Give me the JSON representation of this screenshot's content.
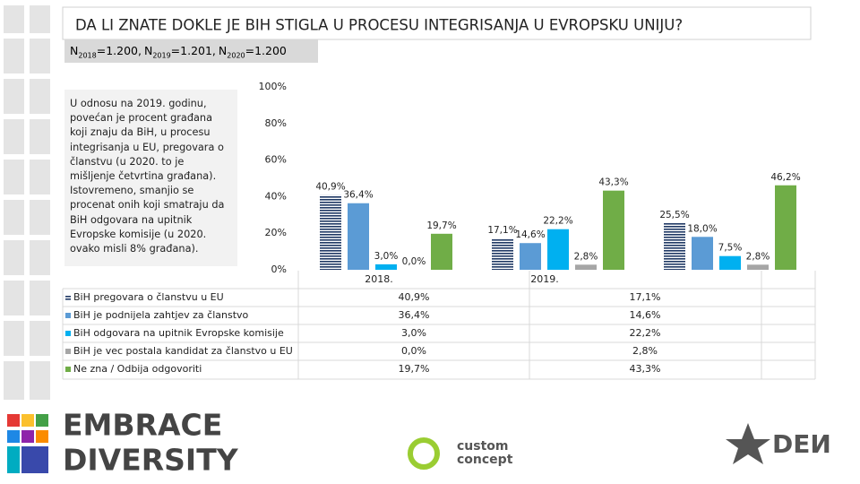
{
  "header": {
    "title": "DA LI ZNATE DOKLE JE BIH STIGLA U PROCESU INTEGRISANJA U EVROPSKU UNIJU?",
    "sample_sizes": [
      {
        "symbol": "N",
        "year": "2018",
        "text": "=1.200,"
      },
      {
        "symbol": "N",
        "year": "2019",
        "text": "=1.201,"
      },
      {
        "symbol": "N",
        "year": "2020",
        "text": "=1.200"
      }
    ]
  },
  "note": "U odnosu na 2019. godinu, povećan je procent građana koji znaju da BiH, u procesu integrisanja u EU, pregovara o članstvu (u 2020. to je mišljenje četvrtina građana). Istovremeno, smanjio se procenat onih koji smatraju da BiH odgovara na upitnik Evropske komisije (u 2020. ovako misli 8% građana).",
  "chart_data": {
    "type": "bar",
    "categories": [
      "2018.",
      "2019.",
      null
    ],
    "ylim": [
      0,
      100
    ],
    "yticks": [
      {
        "value": 0,
        "label": "0%"
      },
      {
        "value": 20,
        "label": "20%"
      },
      {
        "value": 40,
        "label": "40%"
      },
      {
        "value": 60,
        "label": "60%"
      },
      {
        "value": 80,
        "label": "80%"
      },
      {
        "value": 100,
        "label": "100%"
      }
    ],
    "series": [
      {
        "name": "BiH pregovara o članstvu u EU",
        "color": "#1f3864",
        "pattern": "horizontal-lines",
        "values": [
          40.9,
          17.1,
          25.5
        ],
        "value_labels": [
          "40,9%",
          "17,1%",
          "25,5%"
        ]
      },
      {
        "name": "BiH je podnijela zahtjev za članstvo",
        "color": "#5b9bd5",
        "values": [
          36.4,
          14.6,
          18.0
        ],
        "value_labels": [
          "36,4%",
          "14,6%",
          "18,0%"
        ]
      },
      {
        "name": "BiH odgovara na upitnik Evropske komisije",
        "color": "#00b0f0",
        "values": [
          3.0,
          22.2,
          7.5
        ],
        "value_labels": [
          "3,0%",
          "22,2%",
          "7,5%"
        ]
      },
      {
        "name": "BiH je vec postala kandidat za članstvo u EU",
        "color": "#a6a6a6",
        "values": [
          0.0,
          2.8,
          2.8
        ],
        "value_labels": [
          "0,0%",
          "2,8%",
          "2,8%"
        ]
      },
      {
        "name": "Ne zna / Odbija odgovoriti",
        "color": "#70ad47",
        "values": [
          19.7,
          43.3,
          46.2
        ],
        "value_labels": [
          "19,7%",
          "43,3%",
          "46,2%"
        ]
      }
    ]
  },
  "branding": {
    "left_logo": [
      "EMBRACE",
      "DIVERSITY"
    ],
    "partner_logo": [
      "custom",
      "concept"
    ],
    "right_logo": "DEИ"
  }
}
